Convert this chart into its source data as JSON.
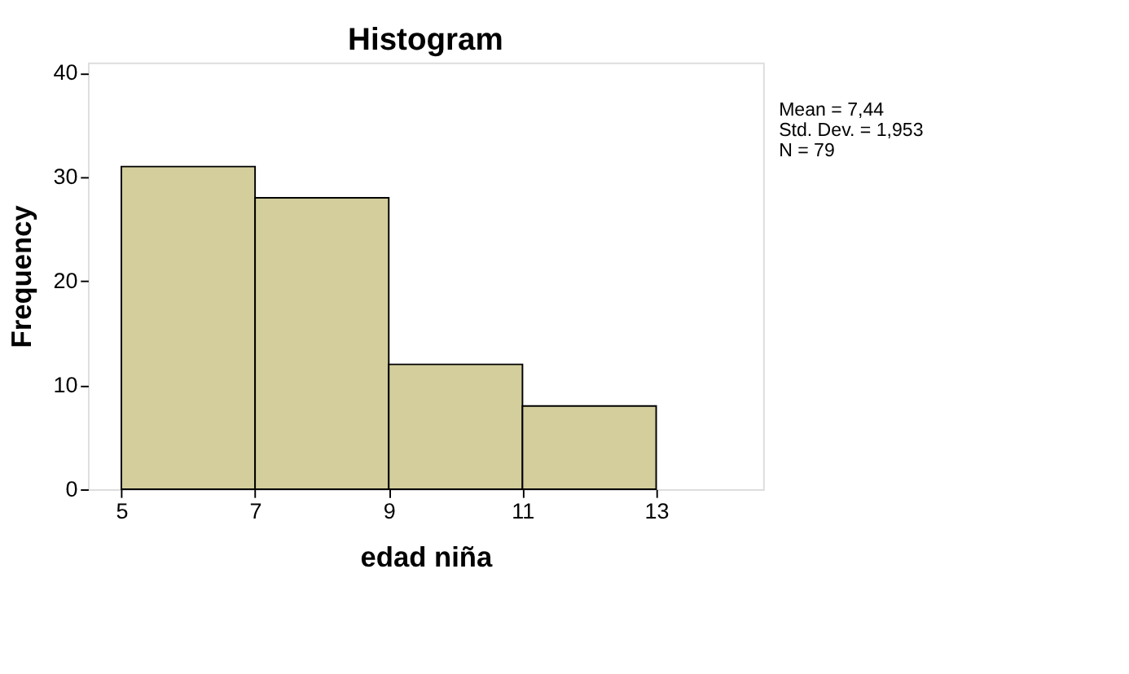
{
  "chart_data": {
    "type": "histogram",
    "title": "Histogram",
    "xlabel": "edad niña",
    "ylabel": "Frequency",
    "bins": [
      5,
      7,
      9,
      11,
      13
    ],
    "values": [
      31,
      28,
      12,
      8
    ],
    "color": "#d3ce9c",
    "xlim": [
      4.5,
      14.6
    ],
    "xticks": [
      5,
      7,
      9,
      11,
      13
    ],
    "ylim": [
      0,
      41
    ],
    "yticks": [
      0,
      10,
      20,
      30,
      40
    ],
    "grid": false,
    "annotations": [
      "Mean = 7,44",
      "Std. Dev. = 1,953",
      "N = 79"
    ]
  }
}
